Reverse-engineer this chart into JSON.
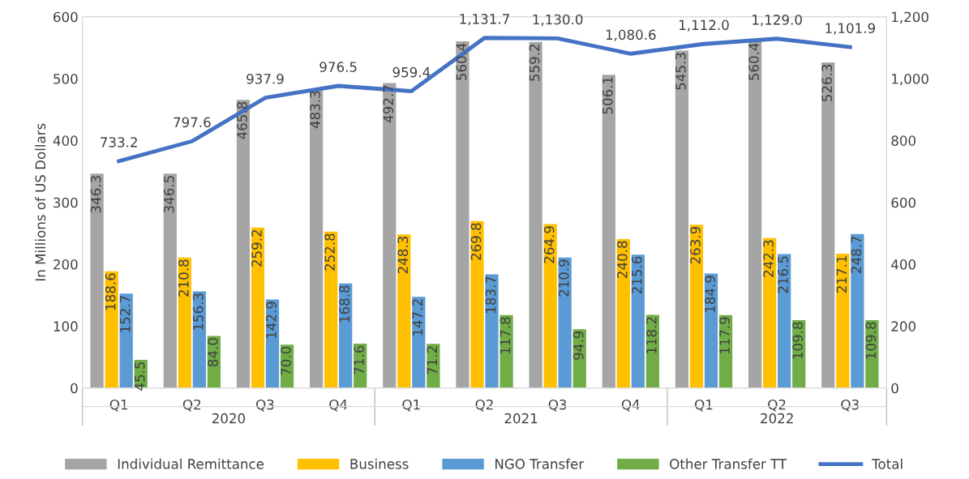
{
  "chart_data": {
    "type": "bar",
    "ylabel": "In Millions of US Dollars",
    "categories": [
      "Q1",
      "Q2",
      "Q3",
      "Q4",
      "Q1",
      "Q2",
      "Q3",
      "Q4",
      "Q1",
      "Q2",
      "Q3"
    ],
    "annotations": [
      "2020",
      "2021",
      "2022"
    ],
    "series": [
      {
        "name": "Individual Remittance",
        "color": "#a5a5a5",
        "values": [
          346.3,
          346.5,
          465.8,
          483.3,
          492.7,
          560.4,
          559.2,
          506.1,
          545.3,
          560.4,
          526.3
        ],
        "value_labels": [
          "346.3",
          "346.5",
          "465.8",
          "483.3",
          "492.7",
          "560.4",
          "559.2",
          "506.1",
          "545.3",
          "560.4",
          "526.3"
        ]
      },
      {
        "name": "Business",
        "color": "#ffc000",
        "values": [
          188.6,
          210.8,
          259.2,
          252.8,
          248.3,
          269.8,
          264.9,
          240.8,
          263.9,
          242.3,
          217.1
        ],
        "value_labels": [
          "188.6",
          "210.8",
          "259.2",
          "252.8",
          "248.3",
          "269.8",
          "264.9",
          "240.8",
          "263.9",
          "242.3",
          "217.1"
        ]
      },
      {
        "name": "NGO Transfer",
        "color": "#5b9bd5",
        "values": [
          152.7,
          156.3,
          142.9,
          168.8,
          147.2,
          183.7,
          210.9,
          215.6,
          184.9,
          216.5,
          248.7
        ],
        "value_labels": [
          "152.7",
          "156.3",
          "142.9",
          "168.8",
          "147.2",
          "183.7",
          "210.9",
          "215.6",
          "184.9",
          "216.5",
          "248.7"
        ]
      },
      {
        "name": "Other Transfer TT",
        "color": "#70ad47",
        "values": [
          45.5,
          84.0,
          70.0,
          71.6,
          71.2,
          117.8,
          94.9,
          118.2,
          117.9,
          109.8,
          109.8
        ],
        "value_labels": [
          "45.5",
          "84.0",
          "70.0",
          "71.6",
          "71.2",
          "117.8",
          "94.9",
          "118.2",
          "117.9",
          "109.8",
          "109.8"
        ]
      },
      {
        "name": "Total",
        "type": "line",
        "axis": "y2",
        "color": "#4472c4",
        "values": [
          733.2,
          797.6,
          937.9,
          976.5,
          959.4,
          1131.7,
          1130.0,
          1080.6,
          1112.0,
          1129.0,
          1101.9
        ],
        "value_labels": [
          "733.2",
          "797.6",
          "937.9",
          "976.5",
          "959.4",
          "1,131.7",
          "1,130.0",
          "1,080.6",
          "1,112.0",
          "1,129.0",
          "1,101.9"
        ]
      }
    ],
    "ylim": [
      0,
      600
    ],
    "yticks": [
      0,
      100,
      200,
      300,
      400,
      500,
      600
    ],
    "y2lim": [
      0,
      1200
    ],
    "y2ticks": [
      0,
      200,
      400,
      600,
      800,
      {
        "value": 1000,
        "label": "1,000"
      },
      {
        "value": 1200,
        "label": "1,200"
      }
    ],
    "grid": false,
    "legend": "bottom",
    "marker": "none",
    "line_style": "solid"
  }
}
